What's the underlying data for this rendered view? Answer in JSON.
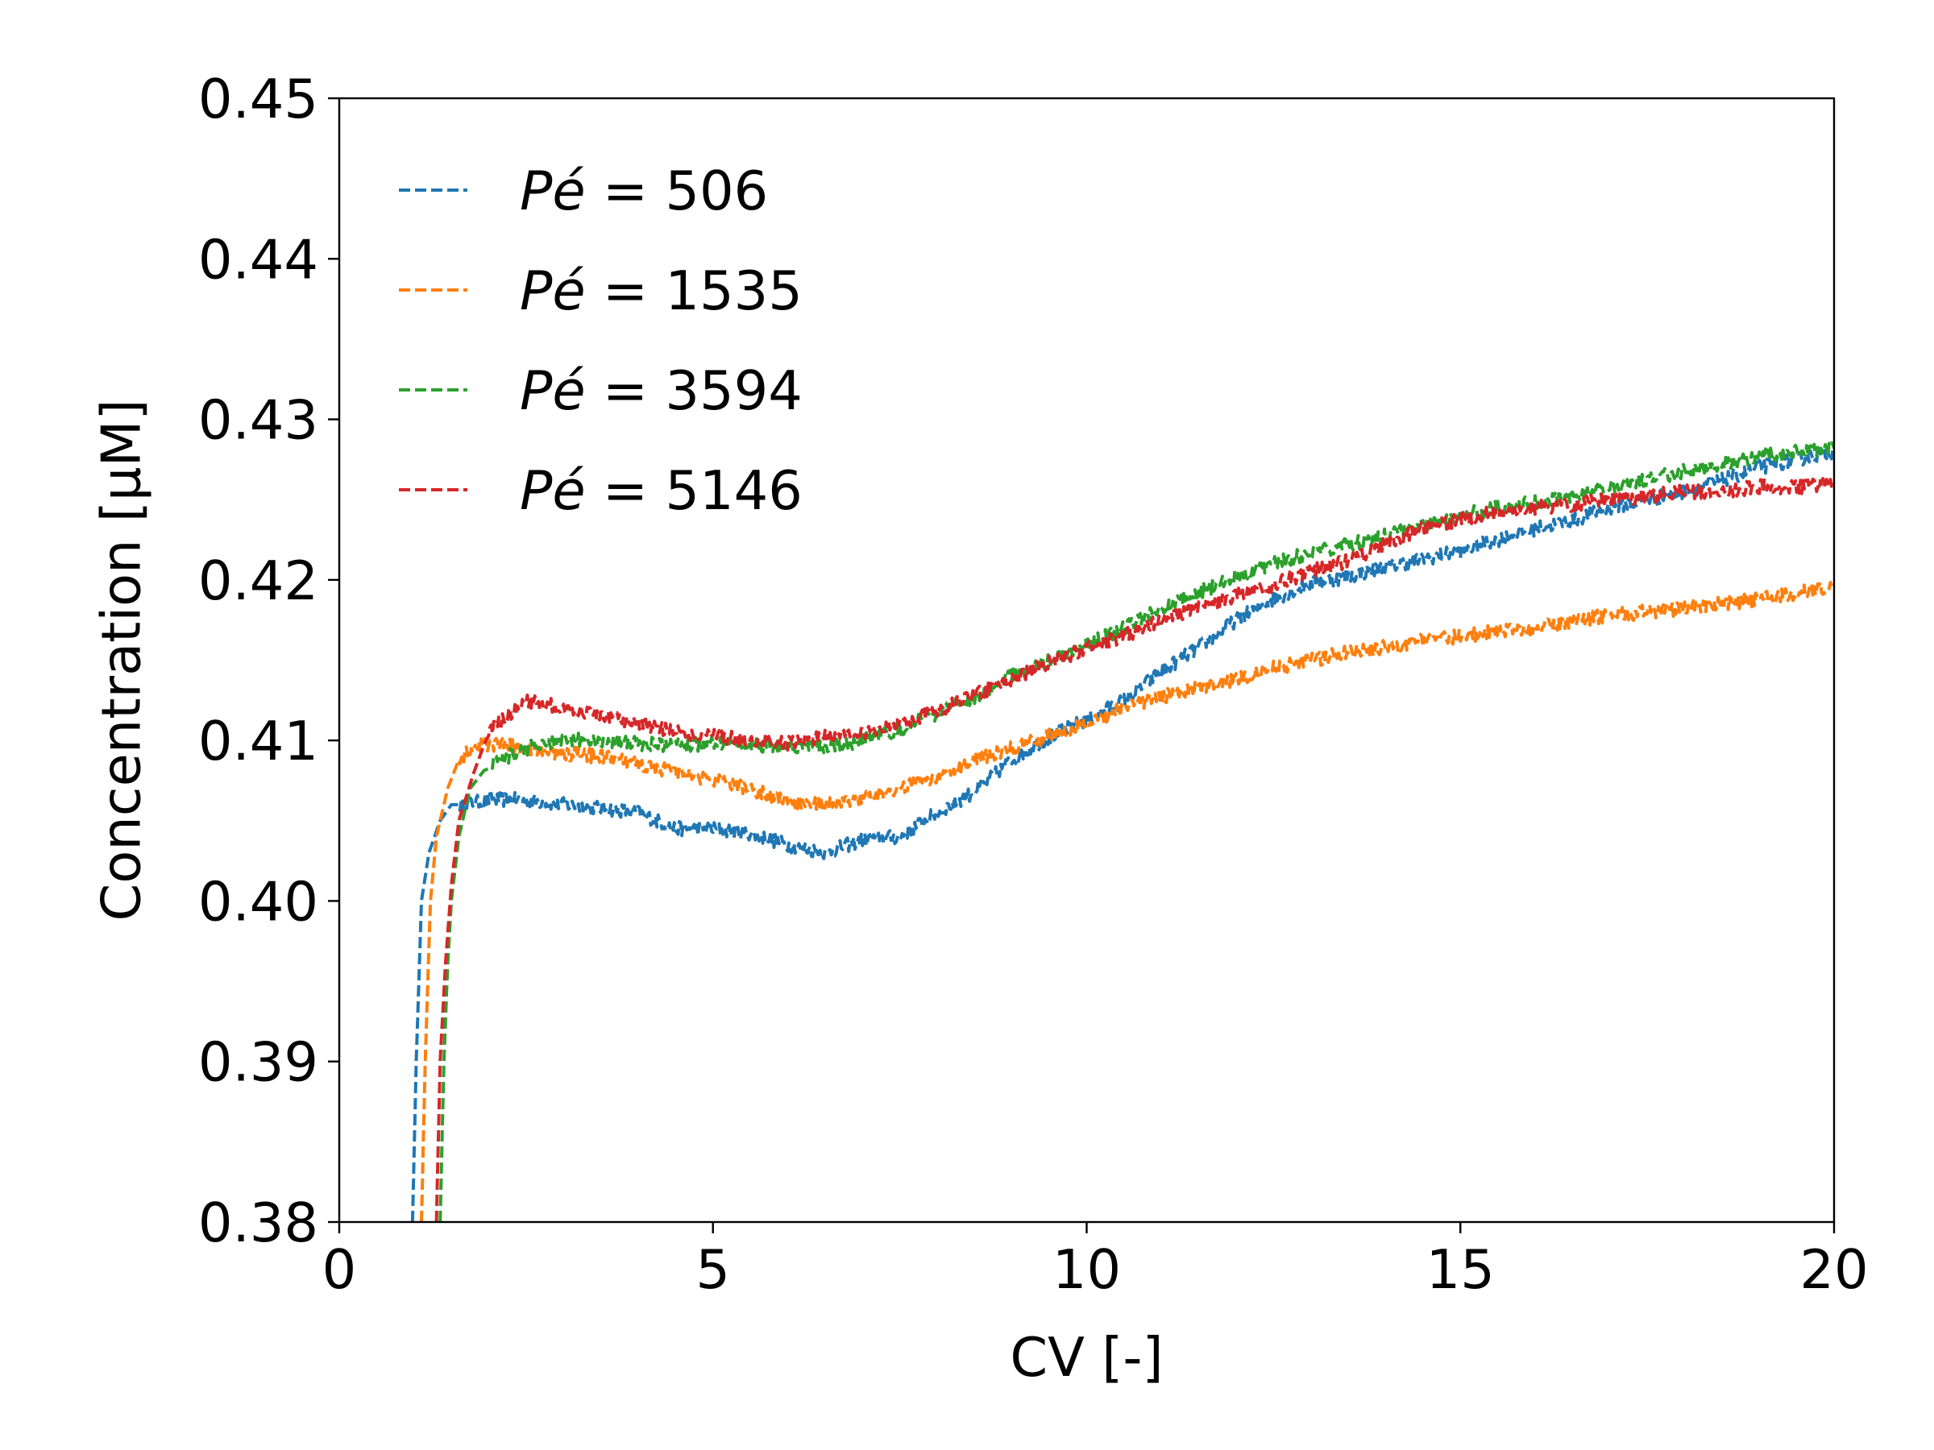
{
  "chart_data": {
    "type": "line",
    "title": "",
    "xlabel": "CV [-]",
    "ylabel": "Concentration [μM]",
    "xlim": [
      0,
      20
    ],
    "ylim": [
      0.38,
      0.45
    ],
    "xticks": [
      0,
      5,
      10,
      15,
      20
    ],
    "yticks": [
      0.38,
      0.39,
      0.4,
      0.41,
      0.42,
      0.43,
      0.44,
      0.45
    ],
    "xtick_labels": [
      "0",
      "5",
      "10",
      "15",
      "20"
    ],
    "ytick_labels": [
      "0.38",
      "0.39",
      "0.40",
      "0.41",
      "0.42",
      "0.43",
      "0.44",
      "0.45"
    ],
    "grid": false,
    "legend": {
      "placement": "top-left",
      "symbol": "Pé",
      "entries": [
        "Pé = 506",
        "Pé = 1535",
        "Pé = 3594",
        "Pé = 5146"
      ]
    },
    "line_style": "dashed",
    "series": [
      {
        "name": "Pé = 506",
        "color": "#1f77b4",
        "x": [
          0.98,
          1.03,
          1.1,
          1.2,
          1.35,
          1.5,
          1.7,
          2.0,
          2.5,
          3.0,
          3.5,
          4.0,
          4.5,
          5.0,
          5.5,
          6.0,
          6.5,
          7.0,
          7.5,
          8.0,
          8.5,
          9.0,
          9.5,
          10.0,
          10.5,
          11.0,
          11.5,
          12.0,
          12.5,
          13.0,
          13.5,
          14.0,
          14.5,
          15.0,
          15.5,
          16.0,
          16.5,
          17.0,
          17.5,
          18.0,
          18.5,
          19.0,
          19.5,
          20.0
        ],
        "y": [
          0.38,
          0.39,
          0.4,
          0.403,
          0.405,
          0.406,
          0.406,
          0.4063,
          0.4063,
          0.406,
          0.4058,
          0.4055,
          0.4045,
          0.4045,
          0.4042,
          0.4035,
          0.403,
          0.4038,
          0.404,
          0.4055,
          0.4068,
          0.4088,
          0.4102,
          0.4113,
          0.4125,
          0.4143,
          0.4158,
          0.4175,
          0.4188,
          0.4198,
          0.4202,
          0.4208,
          0.4213,
          0.4218,
          0.4225,
          0.4232,
          0.4237,
          0.4245,
          0.425,
          0.4255,
          0.4262,
          0.427,
          0.4275,
          0.428
        ]
      },
      {
        "name": "Pé = 1535",
        "color": "#ff7f0e",
        "x": [
          1.1,
          1.15,
          1.22,
          1.3,
          1.45,
          1.6,
          1.8,
          2.0,
          2.5,
          3.0,
          3.5,
          4.0,
          4.5,
          5.0,
          5.5,
          6.0,
          6.5,
          7.0,
          7.5,
          8.0,
          8.5,
          9.0,
          9.5,
          10.0,
          10.5,
          11.0,
          11.5,
          12.0,
          12.5,
          13.0,
          13.5,
          14.0,
          14.5,
          15.0,
          15.5,
          16.0,
          16.5,
          17.0,
          17.5,
          18.0,
          18.5,
          19.0,
          19.5,
          20.0
        ],
        "y": [
          0.38,
          0.39,
          0.4,
          0.404,
          0.407,
          0.4088,
          0.4095,
          0.4098,
          0.4095,
          0.4092,
          0.409,
          0.4085,
          0.408,
          0.4075,
          0.407,
          0.4062,
          0.406,
          0.4065,
          0.407,
          0.4078,
          0.4088,
          0.4095,
          0.4103,
          0.411,
          0.412,
          0.4127,
          0.4133,
          0.4138,
          0.4145,
          0.415,
          0.4155,
          0.4158,
          0.4162,
          0.4165,
          0.4168,
          0.417,
          0.4174,
          0.4178,
          0.418,
          0.4182,
          0.4185,
          0.4188,
          0.4192,
          0.4195
        ]
      },
      {
        "name": "Pé = 3594",
        "color": "#2ca02c",
        "x": [
          1.35,
          1.4,
          1.45,
          1.5,
          1.6,
          1.75,
          2.0,
          2.5,
          3.0,
          3.5,
          4.0,
          4.5,
          5.0,
          5.5,
          6.0,
          6.5,
          7.0,
          7.5,
          8.0,
          8.5,
          9.0,
          9.5,
          10.0,
          10.5,
          11.0,
          11.5,
          12.0,
          12.5,
          13.0,
          13.5,
          14.0,
          14.5,
          15.0,
          15.5,
          16.0,
          16.5,
          17.0,
          17.5,
          18.0,
          18.5,
          19.0,
          19.5,
          20.0
        ],
        "y": [
          0.38,
          0.39,
          0.396,
          0.4,
          0.404,
          0.407,
          0.4085,
          0.4095,
          0.41,
          0.41,
          0.4098,
          0.4097,
          0.4098,
          0.4097,
          0.4097,
          0.4095,
          0.41,
          0.4107,
          0.4117,
          0.4127,
          0.414,
          0.415,
          0.416,
          0.417,
          0.4182,
          0.4192,
          0.4202,
          0.421,
          0.4217,
          0.4222,
          0.4228,
          0.4235,
          0.424,
          0.4245,
          0.4248,
          0.4252,
          0.4258,
          0.4262,
          0.4268,
          0.4272,
          0.4277,
          0.428,
          0.4282
        ]
      },
      {
        "name": "Pé = 5146",
        "color": "#d62728",
        "x": [
          1.3,
          1.35,
          1.42,
          1.5,
          1.6,
          1.8,
          2.0,
          2.5,
          3.0,
          3.5,
          4.0,
          4.5,
          5.0,
          5.5,
          6.0,
          6.5,
          7.0,
          7.5,
          8.0,
          8.5,
          9.0,
          9.5,
          10.0,
          10.5,
          11.0,
          11.5,
          12.0,
          12.5,
          13.0,
          13.5,
          14.0,
          14.5,
          15.0,
          15.5,
          16.0,
          16.5,
          17.0,
          17.5,
          18.0,
          18.5,
          19.0,
          19.5,
          20.0
        ],
        "y": [
          0.38,
          0.39,
          0.396,
          0.401,
          0.405,
          0.408,
          0.4105,
          0.4125,
          0.412,
          0.4115,
          0.411,
          0.4105,
          0.4103,
          0.41,
          0.4098,
          0.4103,
          0.4105,
          0.411,
          0.4118,
          0.4128,
          0.4138,
          0.4148,
          0.4158,
          0.4165,
          0.4175,
          0.4183,
          0.419,
          0.4197,
          0.4205,
          0.4212,
          0.4222,
          0.4232,
          0.4238,
          0.4242,
          0.4245,
          0.4247,
          0.425,
          0.4252,
          0.4255,
          0.4255,
          0.4258,
          0.4258,
          0.426
        ]
      }
    ]
  }
}
